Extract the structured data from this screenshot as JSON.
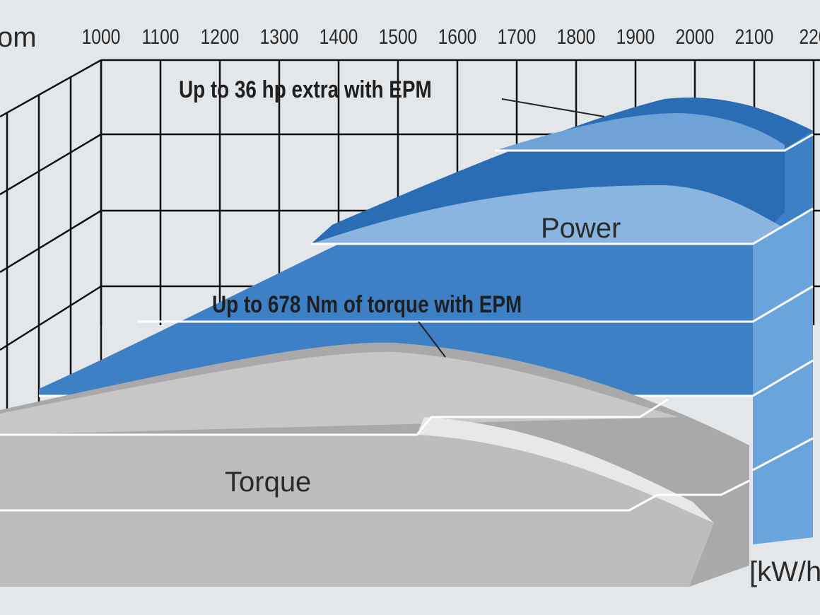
{
  "axis": {
    "unit_label": "om",
    "ticks": [
      1000,
      1100,
      1200,
      1300,
      1400,
      1500,
      1600,
      1700,
      1800,
      1900,
      2000,
      2100,
      "220"
    ],
    "value_unit": "[kW/h"
  },
  "annotations": {
    "power_epm": "Up to 36 hp extra with EPM",
    "power": "Power",
    "torque_epm": "Up to 678 Nm of torque with EPM",
    "torque": "Torque"
  }
}
